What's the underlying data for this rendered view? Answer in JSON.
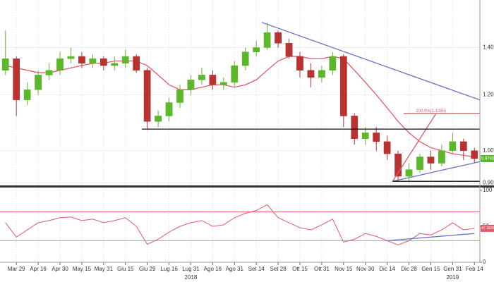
{
  "chart_data": [
    {
      "type": "candlestick",
      "categories": [
        null,
        "Mar 29",
        null,
        "Apr 16",
        null,
        "Apr 30",
        null,
        "May 15",
        null,
        "May 31",
        null,
        "Giu 15",
        null,
        "Giu 29",
        null,
        "Lug 16",
        null,
        "Lug 31",
        null,
        "Ago 16",
        null,
        "Ago 31",
        null,
        "Set 14",
        null,
        "Set 28",
        null,
        "Ott 15",
        null,
        "Ott 31",
        null,
        "Nov 15",
        null,
        "Nov 30",
        null,
        "Dic 14",
        null,
        "Dic 28",
        null,
        "Gen 15",
        null,
        "Gen 31",
        null,
        "Feb 14"
      ],
      "years": [
        {
          "label": "2018",
          "category": 17
        },
        {
          "label": "2019",
          "category": 41
        }
      ],
      "open": [
        1.3,
        1.35,
        1.18,
        1.22,
        1.28,
        1.3,
        1.35,
        1.36,
        1.33,
        1.35,
        1.32,
        1.33,
        1.36,
        1.3,
        1.1,
        1.12,
        1.17,
        1.22,
        1.26,
        1.28,
        1.24,
        1.25,
        1.32,
        1.38,
        1.4,
        1.47,
        1.42,
        1.36,
        1.3,
        1.27,
        1.3,
        1.36,
        1.12,
        1.04,
        1.06,
        1.03,
        0.99,
        0.92,
        0.94,
        0.98,
        0.96,
        1.0,
        1.03,
        1.0
      ],
      "high": [
        1.48,
        1.36,
        1.25,
        1.3,
        1.33,
        1.38,
        1.4,
        1.38,
        1.37,
        1.36,
        1.36,
        1.39,
        1.37,
        1.31,
        1.14,
        1.19,
        1.24,
        1.28,
        1.31,
        1.3,
        1.27,
        1.34,
        1.4,
        1.43,
        1.52,
        1.48,
        1.44,
        1.38,
        1.33,
        1.32,
        1.38,
        1.37,
        1.13,
        1.08,
        1.08,
        1.05,
        1.0,
        0.96,
        0.99,
        1.0,
        1.02,
        1.06,
        1.04,
        1.01
      ],
      "low": [
        1.28,
        1.12,
        1.16,
        1.2,
        1.26,
        1.28,
        1.33,
        1.31,
        1.31,
        1.3,
        1.3,
        1.31,
        1.29,
        1.07,
        1.08,
        1.1,
        1.15,
        1.2,
        1.24,
        1.22,
        1.22,
        1.23,
        1.3,
        1.36,
        1.39,
        1.4,
        1.35,
        1.27,
        1.23,
        1.25,
        1.28,
        1.08,
        1.02,
        1.02,
        1.0,
        0.97,
        0.905,
        0.905,
        0.93,
        0.94,
        0.95,
        0.99,
        0.97,
        0.96
      ],
      "close": [
        1.35,
        1.18,
        1.22,
        1.28,
        1.3,
        1.35,
        1.36,
        1.33,
        1.35,
        1.32,
        1.33,
        1.36,
        1.3,
        1.1,
        1.12,
        1.17,
        1.22,
        1.26,
        1.28,
        1.24,
        1.25,
        1.32,
        1.38,
        1.4,
        1.47,
        1.42,
        1.36,
        1.3,
        1.27,
        1.3,
        1.36,
        1.12,
        1.04,
        1.06,
        1.03,
        0.99,
        0.92,
        0.94,
        0.98,
        0.96,
        1.0,
        1.03,
        1.0,
        0.9745
      ],
      "up_color": "#5cb82b",
      "down_color": "#b83232",
      "moving_average": {
        "color": "#e05a6a",
        "values": [
          1.32,
          1.31,
          1.3,
          1.29,
          1.29,
          1.3,
          1.31,
          1.32,
          1.33,
          1.33,
          1.34,
          1.34,
          1.34,
          1.32,
          1.28,
          1.24,
          1.22,
          1.22,
          1.23,
          1.24,
          1.24,
          1.23,
          1.24,
          1.26,
          1.3,
          1.34,
          1.36,
          1.36,
          1.35,
          1.35,
          1.36,
          1.35,
          1.3,
          1.25,
          1.2,
          1.15,
          1.1,
          1.06,
          1.03,
          1.01,
          1.0,
          0.99,
          0.985,
          0.98
        ]
      },
      "log_scale": true,
      "ylim": [
        0.895,
        1.62
      ],
      "yticks": [
        {
          "value": 0.9,
          "label": "0.90"
        },
        {
          "value": 1,
          "label": "1.00"
        },
        {
          "value": 1.2,
          "label": "1.20"
        },
        {
          "value": 1.4,
          "label": "1.40"
        }
      ],
      "trendlines": [
        {
          "color": "#6a74c4",
          "points": [
            [
              24,
              1.52
            ],
            [
              44,
              1.18
            ]
          ]
        },
        {
          "color": "#6a74c4",
          "points": [
            [
              36,
              0.905
            ],
            [
              44,
              0.965
            ]
          ]
        },
        {
          "color": "#e05a6a",
          "points": [
            [
              36,
              0.905
            ],
            [
              40,
              1.13
            ]
          ]
        },
        {
          "color": "#111111",
          "points": [
            [
              13,
              1.073
            ],
            [
              44,
              1.073
            ]
          ]
        },
        {
          "color": "#111111",
          "points": [
            [
              36,
              0.905
            ],
            [
              44,
              0.905
            ]
          ]
        },
        {
          "color": "#e05a6a",
          "points": [
            [
              37,
              1.1285
            ],
            [
              44,
              1.1285
            ]
          ]
        }
      ],
      "annotation": {
        "value": 1.1285,
        "text": "100.0%(1.1285)",
        "color": "#e05a6a"
      },
      "last_price": 0.9745,
      "last_color": "#5cb82b"
    },
    {
      "type": "line",
      "color": "#e05a6a",
      "values": [
        55,
        35,
        45,
        55,
        58,
        62,
        63,
        58,
        60,
        55,
        58,
        62,
        50,
        25,
        32,
        42,
        50,
        55,
        58,
        50,
        52,
        62,
        68,
        72,
        80,
        62,
        55,
        48,
        45,
        52,
        60,
        28,
        32,
        40,
        36,
        30,
        24,
        30,
        40,
        38,
        45,
        55,
        45,
        47.1828
      ],
      "ylim": [
        0,
        100
      ],
      "yticks": [
        0,
        50,
        100
      ],
      "levels": [
        {
          "value": 70,
          "color": "#e05a6a"
        },
        {
          "value": 30,
          "color": "#7cc850"
        }
      ],
      "trendlines": [
        {
          "color": "#6a74c4",
          "points": [
            [
              35,
              30
            ],
            [
              43,
              40
            ]
          ]
        }
      ],
      "last_value": 47.1828
    }
  ]
}
